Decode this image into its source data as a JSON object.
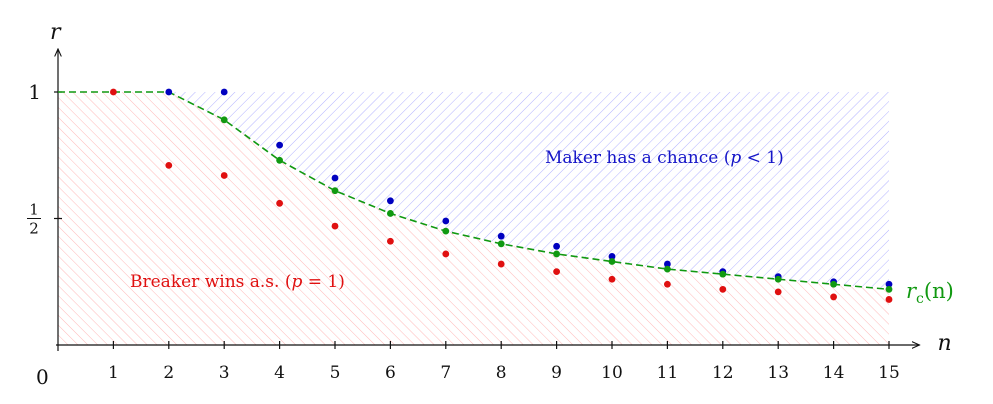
{
  "chart_data": {
    "type": "scatter",
    "xlabel": "n",
    "ylabel": "r",
    "origin_label": "0",
    "xlim": [
      0,
      15.55
    ],
    "ylim": [
      0,
      1.17
    ],
    "x_ticks": [
      "1",
      "2",
      "3",
      "4",
      "5",
      "6",
      "7",
      "8",
      "9",
      "10",
      "11",
      "12",
      "13",
      "14",
      "15"
    ],
    "y_ticks": [
      {
        "value": 0.5,
        "numerator": "1",
        "denominator": "2"
      },
      {
        "value": 1,
        "label": "1"
      }
    ],
    "series": [
      {
        "name": "",
        "color": "#0000c0",
        "points": [
          [
            2,
            1.0
          ],
          [
            3,
            1.0
          ],
          [
            4,
            0.79
          ],
          [
            5,
            0.66
          ],
          [
            6,
            0.57
          ],
          [
            7,
            0.49
          ],
          [
            8,
            0.43
          ],
          [
            9,
            0.39
          ],
          [
            10,
            0.35
          ],
          [
            11,
            0.32
          ],
          [
            12,
            0.29
          ],
          [
            13,
            0.27
          ],
          [
            14,
            0.25
          ],
          [
            15,
            0.24
          ]
        ]
      },
      {
        "name": "",
        "color": "#e01010",
        "points": [
          [
            1,
            1.0
          ],
          [
            2,
            0.71
          ],
          [
            3,
            0.67
          ],
          [
            4,
            0.56
          ],
          [
            5,
            0.47
          ],
          [
            6,
            0.41
          ],
          [
            7,
            0.36
          ],
          [
            8,
            0.32
          ],
          [
            9,
            0.29
          ],
          [
            10,
            0.26
          ],
          [
            11,
            0.24
          ],
          [
            12,
            0.22
          ],
          [
            13,
            0.21
          ],
          [
            14,
            0.19
          ],
          [
            15,
            0.18
          ]
        ]
      },
      {
        "name": "r_c(n)",
        "color": "#119911",
        "points": [
          [
            3,
            0.89
          ],
          [
            4,
            0.73
          ],
          [
            5,
            0.61
          ],
          [
            6,
            0.52
          ],
          [
            7,
            0.45
          ],
          [
            8,
            0.4
          ],
          [
            9,
            0.36
          ],
          [
            10,
            0.33
          ],
          [
            11,
            0.3
          ],
          [
            12,
            0.28
          ],
          [
            13,
            0.26
          ],
          [
            14,
            0.24
          ],
          [
            15,
            0.22
          ]
        ]
      }
    ],
    "threshold_curve": {
      "label_base": "r",
      "label_sub": "c",
      "label_arg": "(n)",
      "points": [
        [
          0,
          1.0
        ],
        [
          2,
          1.0
        ],
        [
          3,
          0.89
        ],
        [
          4,
          0.73
        ],
        [
          5,
          0.61
        ],
        [
          6,
          0.52
        ],
        [
          7,
          0.45
        ],
        [
          8,
          0.4
        ],
        [
          9,
          0.36
        ],
        [
          10,
          0.33
        ],
        [
          11,
          0.3
        ],
        [
          12,
          0.28
        ],
        [
          13,
          0.26
        ],
        [
          14,
          0.24
        ],
        [
          15,
          0.22
        ]
      ]
    },
    "annotations": {
      "maker": {
        "text": "Maker has a chance (",
        "var": "p",
        "rel": " < 1)",
        "color": "#1515c8"
      },
      "breaker": {
        "text": "Breaker wins a.s. (",
        "var": "p",
        "rel": " = 1)",
        "color": "#e01010"
      }
    },
    "regions": {
      "maker_color": "#8080ff",
      "breaker_color": "#ff8080"
    }
  }
}
